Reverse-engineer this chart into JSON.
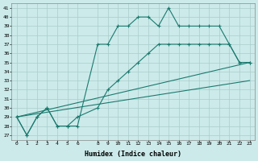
{
  "xlabel": "Humidex (Indice chaleur)",
  "bg_color": "#cceaea",
  "grid_color": "#aacccc",
  "line_color": "#1a7a6e",
  "xlim": [
    -0.5,
    23.5
  ],
  "ylim": [
    26.5,
    41.5
  ],
  "xticks": [
    0,
    1,
    2,
    3,
    4,
    5,
    6,
    8,
    9,
    10,
    11,
    12,
    13,
    14,
    15,
    16,
    17,
    18,
    19,
    20,
    21,
    22,
    23
  ],
  "yticks": [
    27,
    28,
    29,
    30,
    31,
    32,
    33,
    34,
    35,
    36,
    37,
    38,
    39,
    40,
    41
  ],
  "lines": [
    {
      "x": [
        0,
        1,
        2,
        3,
        4,
        5,
        6,
        8,
        9,
        10,
        11,
        12,
        13,
        14,
        15,
        16,
        17,
        18,
        19,
        20,
        21,
        22,
        23
      ],
      "y": [
        29,
        27,
        29,
        30,
        28,
        28,
        28,
        37,
        37,
        39,
        39,
        40,
        40,
        39,
        41,
        39,
        39,
        39,
        39,
        39,
        37,
        35,
        35
      ],
      "marker": "+"
    },
    {
      "x": [
        0,
        1,
        2,
        3,
        4,
        5,
        6,
        8,
        9,
        10,
        11,
        12,
        13,
        14,
        15,
        16,
        17,
        18,
        19,
        20,
        21,
        22,
        23
      ],
      "y": [
        29,
        27,
        29,
        30,
        28,
        28,
        29,
        30,
        32,
        33,
        34,
        35,
        36,
        37,
        37,
        37,
        37,
        37,
        37,
        37,
        37,
        35,
        35
      ],
      "marker": "+"
    },
    {
      "x": [
        0,
        23
      ],
      "y": [
        29,
        35
      ],
      "marker": null
    },
    {
      "x": [
        0,
        23
      ],
      "y": [
        29,
        33
      ],
      "marker": null
    }
  ]
}
